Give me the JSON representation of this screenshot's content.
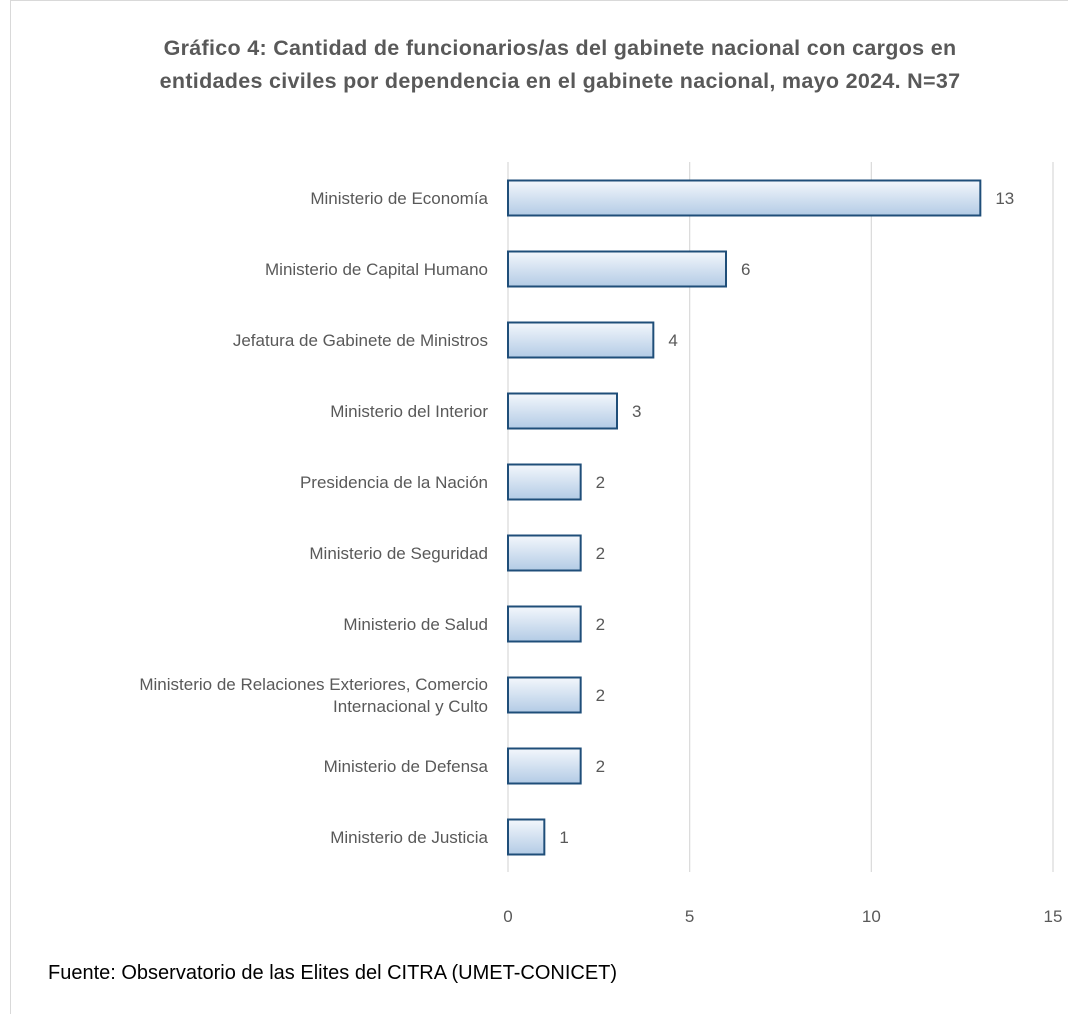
{
  "chart_data": {
    "type": "bar",
    "orientation": "horizontal",
    "title": "Gráfico 4: Cantidad de funcionarios/as del gabinete nacional con cargos en entidades civiles por dependencia en el gabinete nacional, mayo 2024. N=37",
    "categories": [
      "Ministerio de Economía",
      "Ministerio de Capital Humano",
      "Jefatura de Gabinete de Ministros",
      "Ministerio del Interior",
      "Presidencia de la Nación",
      "Ministerio de Seguridad",
      "Ministerio de Salud",
      "Ministerio de Relaciones Exteriores, Comercio Internacional y Culto",
      "Ministerio de Defensa",
      "Ministerio de Justicia"
    ],
    "category_lines": [
      [
        "Ministerio de Economía"
      ],
      [
        "Ministerio de Capital Humano"
      ],
      [
        "Jefatura de Gabinete de Ministros"
      ],
      [
        "Ministerio del Interior"
      ],
      [
        "Presidencia de la Nación"
      ],
      [
        "Ministerio de Seguridad"
      ],
      [
        "Ministerio de Salud"
      ],
      [
        "Ministerio de Relaciones Exteriores, Comercio",
        "Internacional y Culto"
      ],
      [
        "Ministerio de Defensa"
      ],
      [
        "Ministerio de Justicia"
      ]
    ],
    "values": [
      13,
      6,
      4,
      3,
      2,
      2,
      2,
      2,
      2,
      1
    ],
    "xlim": [
      0,
      15
    ],
    "xticks": [
      "0",
      "5",
      "10",
      "15"
    ],
    "grid": true,
    "data_labels": true,
    "colors": {
      "bar_top": "#f3f7fc",
      "bar_bottom": "#b3cbe5",
      "bar_border": "#1f4e79",
      "grid": "#d9d9d9",
      "text": "#595959"
    }
  },
  "source_note": "Fuente: Observatorio de las Elites del CITRA (UMET-CONICET)"
}
